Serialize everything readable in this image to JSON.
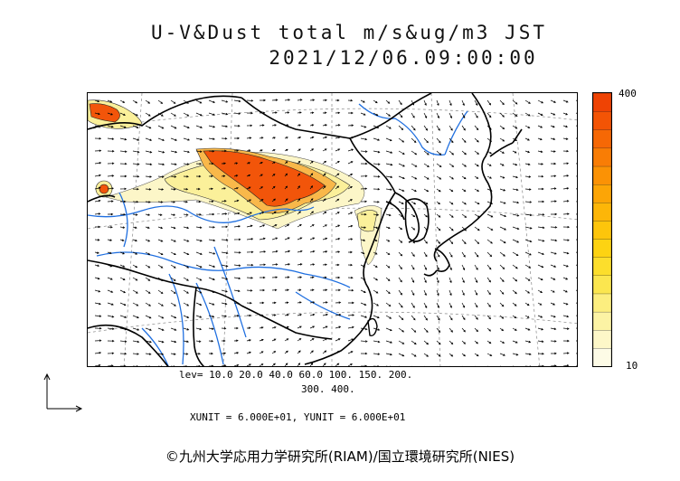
{
  "title": {
    "line1": "U-V&Dust total m/s&ug/m3 JST",
    "line2": "2021/12/06.09:00:00"
  },
  "colorbar": {
    "max_label": "400",
    "min_label": "10",
    "colors": [
      "#fdfbe6",
      "#fdf7c8",
      "#fcf3a4",
      "#fcee7f",
      "#fbe64f",
      "#fcde2c",
      "#fdd312",
      "#fdc50b",
      "#fdb608",
      "#fca506",
      "#fb9205",
      "#f97d05",
      "#f66805",
      "#f35405",
      "#ef4304"
    ]
  },
  "legend": {
    "lev_line1": "lev= 10.0 20.0 40.0 60.0 100. 150. 200.",
    "lev_line2": "300. 400.",
    "units": "XUNIT = 6.000E+01, YUNIT = 6.000E+01"
  },
  "credit": "©九州大学応用力学研究所(RIAM)/国立環境研究所(NIES)",
  "map_colors": {
    "coast": "#000000",
    "river": "#1f6fe0",
    "dust_high": "#f2550a",
    "dust_mid": "#f9b84a",
    "dust_low": "#fbf09a",
    "dust_faint": "#fcf6c8"
  }
}
